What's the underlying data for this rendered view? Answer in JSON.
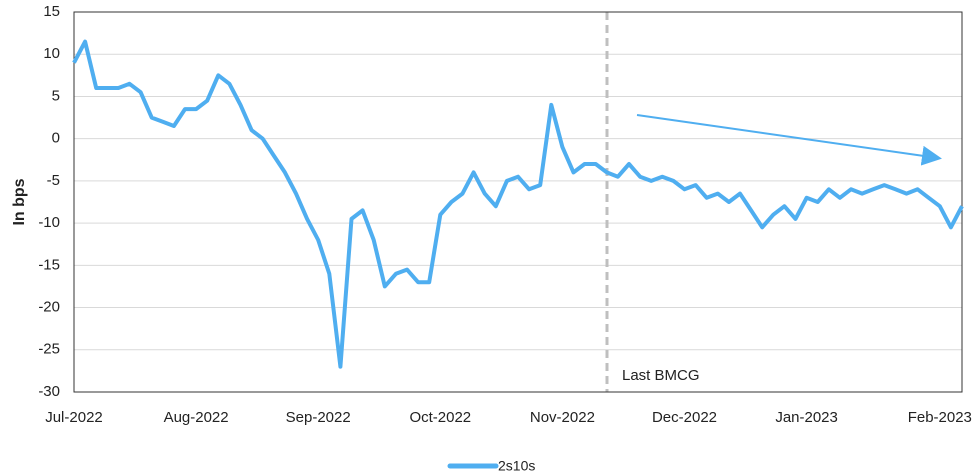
{
  "chart_data": {
    "type": "line",
    "y_label": "In bps",
    "annotations": [
      "Last BMCG"
    ],
    "categories": [
      "Jul-2022",
      null,
      null,
      null,
      null,
      null,
      null,
      null,
      null,
      null,
      null,
      "Aug-2022",
      null,
      null,
      null,
      null,
      null,
      null,
      null,
      null,
      null,
      null,
      "Sep-2022",
      null,
      null,
      null,
      null,
      null,
      null,
      null,
      null,
      null,
      null,
      "Oct-2022",
      null,
      null,
      null,
      null,
      null,
      null,
      null,
      null,
      null,
      null,
      "Nov-2022",
      null,
      null,
      null,
      null,
      null,
      null,
      null,
      null,
      null,
      null,
      "Dec-2022",
      null,
      null,
      null,
      null,
      null,
      null,
      null,
      null,
      null,
      null,
      "Jan-2023",
      null,
      null,
      null,
      null,
      null,
      null,
      null,
      null,
      null,
      null,
      null,
      "Feb-2023",
      null,
      null
    ],
    "series": [
      {
        "name": "2s10s",
        "color": "#4faef0",
        "values": [
          9,
          11.5,
          6,
          6,
          6,
          6.5,
          5.5,
          2.5,
          2,
          1.5,
          3.5,
          3.5,
          4.5,
          7.5,
          6.5,
          4,
          1,
          0,
          -2,
          -4,
          -6.5,
          -9.5,
          -12,
          -16,
          -27,
          -9.5,
          -8.5,
          -12,
          -17.5,
          -16,
          -15.5,
          -17,
          -17,
          -9,
          -7.5,
          -6.5,
          -4,
          -6.5,
          -8,
          -5,
          -4.5,
          -6,
          -5.5,
          4,
          -1,
          -4,
          -3,
          -3,
          -4,
          -4.5,
          -3,
          -4.5,
          -5,
          -4.5,
          -5,
          -6,
          -5.5,
          -7,
          -6.5,
          -7.5,
          -6.5,
          -8.5,
          -10.5,
          -9,
          -8,
          -9.5,
          -7,
          -7.5,
          -6,
          -7,
          -6,
          -6.5,
          -6,
          -5.5,
          -6,
          -6.5,
          -6,
          -7,
          -8,
          -10.5,
          -8
        ]
      }
    ],
    "ylim": [
      -30,
      15
    ],
    "yticks": [
      -30,
      -25,
      -20,
      -15,
      -10,
      -5,
      0,
      5,
      10,
      15
    ],
    "grid": true
  }
}
